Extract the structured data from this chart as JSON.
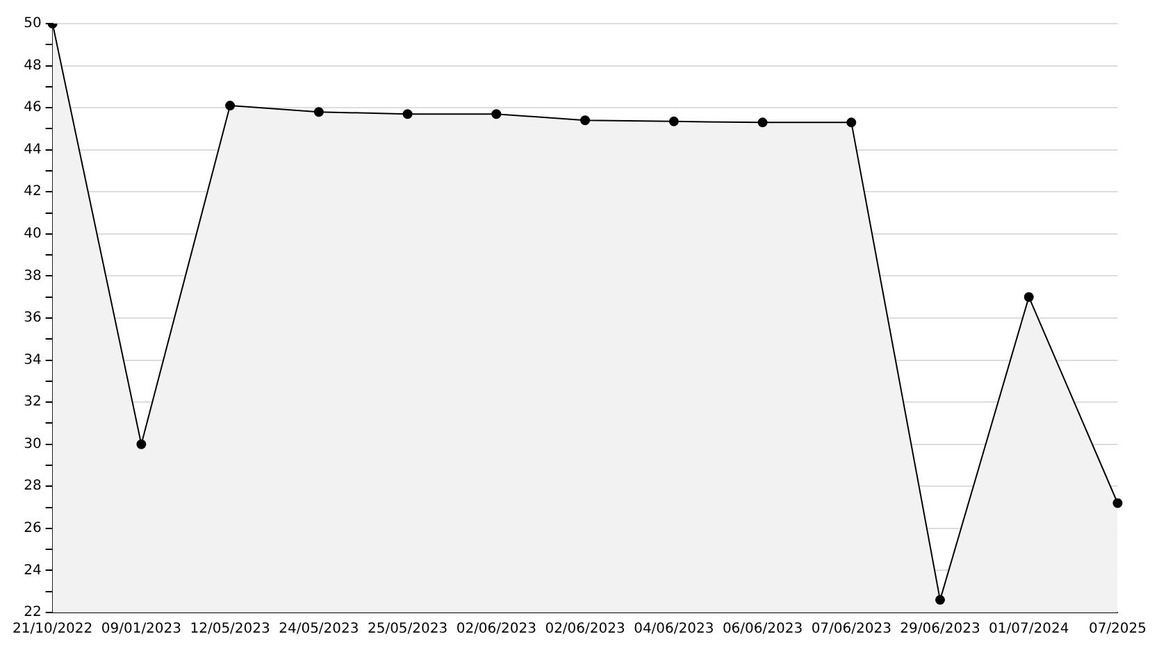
{
  "chart_data": {
    "type": "area",
    "categories": [
      "21/10/2022",
      "09/01/2023",
      "12/05/2023",
      "24/05/2023",
      "25/05/2023",
      "02/06/2023",
      "02/06/2023",
      "04/06/2023",
      "06/06/2023",
      "07/06/2023",
      "29/06/2023",
      "01/07/2024",
      "07/2025"
    ],
    "series": [
      {
        "color": "#000000",
        "values": [
          50,
          30,
          46.1,
          45.8,
          45.7,
          45.7,
          45.4,
          45.35,
          45.3,
          45.3,
          22.6,
          37,
          27.2
        ]
      }
    ],
    "ylim": [
      22,
      50
    ],
    "yticks": [
      22,
      {
        "value": 23,
        "label": null
      },
      24,
      {
        "value": 25,
        "label": null
      },
      26,
      {
        "value": 27,
        "label": null
      },
      28,
      {
        "value": 29,
        "label": null
      },
      30,
      {
        "value": 31,
        "label": null
      },
      32,
      {
        "value": 33,
        "label": null
      },
      34,
      {
        "value": 35,
        "label": null
      },
      36,
      {
        "value": 37,
        "label": null
      },
      38,
      {
        "value": 39,
        "label": null
      },
      40,
      {
        "value": 41,
        "label": null
      },
      42,
      {
        "value": 43,
        "label": null
      },
      44,
      {
        "value": 45,
        "label": null
      },
      46,
      {
        "value": 47,
        "label": null
      },
      48,
      {
        "value": 49,
        "label": null
      },
      50
    ],
    "grid": "y",
    "legend": false,
    "marker": "circle",
    "line_style": "solid"
  }
}
